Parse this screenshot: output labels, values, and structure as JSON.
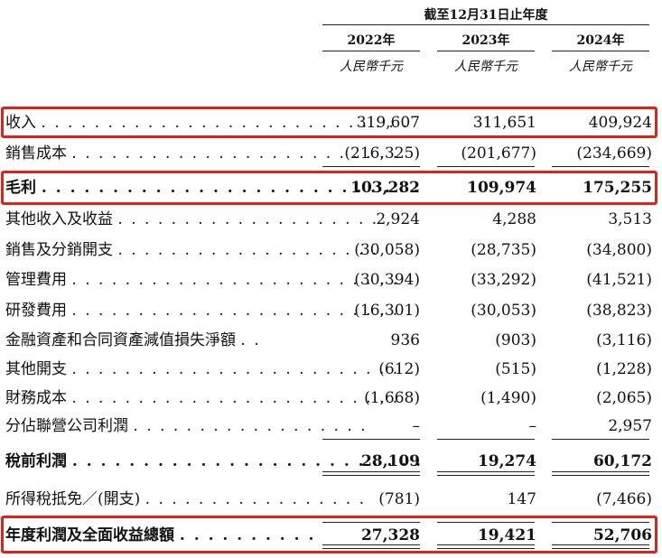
{
  "header": {
    "period": "截至12月31日止年度",
    "years": [
      "2022年",
      "2023年",
      "2024年"
    ],
    "units": [
      "人民幣千元",
      "人民幣千元",
      "人民幣千元"
    ]
  },
  "rows": [
    {
      "label": "收入",
      "dots": ". . . . . . . . . . . . . . . . . . . . . . . . . . . .",
      "values": [
        "319,607",
        "311,651",
        "409,924"
      ],
      "bold": false
    },
    {
      "label": "銷售成本",
      "dots": ". . . . . . . . . . . . . . . . . . . . . . . . .",
      "values": [
        "(216,325)",
        "(201,677)",
        "(234,669)"
      ],
      "bold": false
    },
    {
      "label": "毛利",
      "dots": ". . . . . . . . . . . . . . . . . . . . . . . . . . .",
      "values": [
        "103,282",
        "109,974",
        "175,255"
      ],
      "bold": true
    },
    {
      "label": "其他收入及收益",
      "dots": ". . . . . . . . . . . . . . . . . . . .",
      "values": [
        "2,924",
        "4,288",
        "3,513"
      ],
      "bold": false
    },
    {
      "label": "銷售及分銷開支",
      "dots": ". . . . . . . . . . . . . . . . . . . .",
      "values": [
        "(30,058)",
        "(28,735)",
        "(34,800)"
      ],
      "bold": false
    },
    {
      "label": "管理費用",
      "dots": ". . . . . . . . . . . . . . . . . . . . . . . . .",
      "values": [
        "(30,394)",
        "(33,292)",
        "(41,521)"
      ],
      "bold": false
    },
    {
      "label": "研發費用",
      "dots": ". . . . . . . . . . . . . . . . . . . . . . . . .",
      "values": [
        "(16,301)",
        "(30,053)",
        "(38,823)"
      ],
      "bold": false
    },
    {
      "label": "金融資產和合同資產減值損失淨額",
      "dots": ". .",
      "values": [
        "936",
        "(903)",
        "(3,116)"
      ],
      "bold": false
    },
    {
      "label": "其他開支",
      "dots": ". . . . . . . . . . . . . . . . . . . . . . . . .",
      "values": [
        "(612)",
        "(515)",
        "(1,228)"
      ],
      "bold": false
    },
    {
      "label": "財務成本",
      "dots": ". . . . . . . . . . . . . . . . . . . . . . . . .",
      "values": [
        "(1,668)",
        "(1,490)",
        "(2,065)"
      ],
      "bold": false
    },
    {
      "label": "分佔聯營公司利潤",
      "dots": ". . . . . . . . . . . . . . . . . .",
      "values": [
        "–",
        "–",
        "2,957"
      ],
      "bold": false
    },
    {
      "label": "稅前利潤",
      "dots": ". . . . . . . . . . . . . . . . . . . . . . . . .",
      "values": [
        "28,109",
        "19,274",
        "60,172"
      ],
      "bold": true
    },
    {
      "label": "所得稅抵免／(開支)",
      "dots": ". . . . . . . . . . . . . . . . .",
      "values": [
        "(781)",
        "147",
        "(7,466)"
      ],
      "bold": false
    },
    {
      "label": "年度利潤及全面收益總額",
      "dots": ". . . . . . . . . .",
      "values": [
        "27,328",
        "19,421",
        "52,706"
      ],
      "bold": true
    }
  ],
  "highlight_color": "#e0201b"
}
